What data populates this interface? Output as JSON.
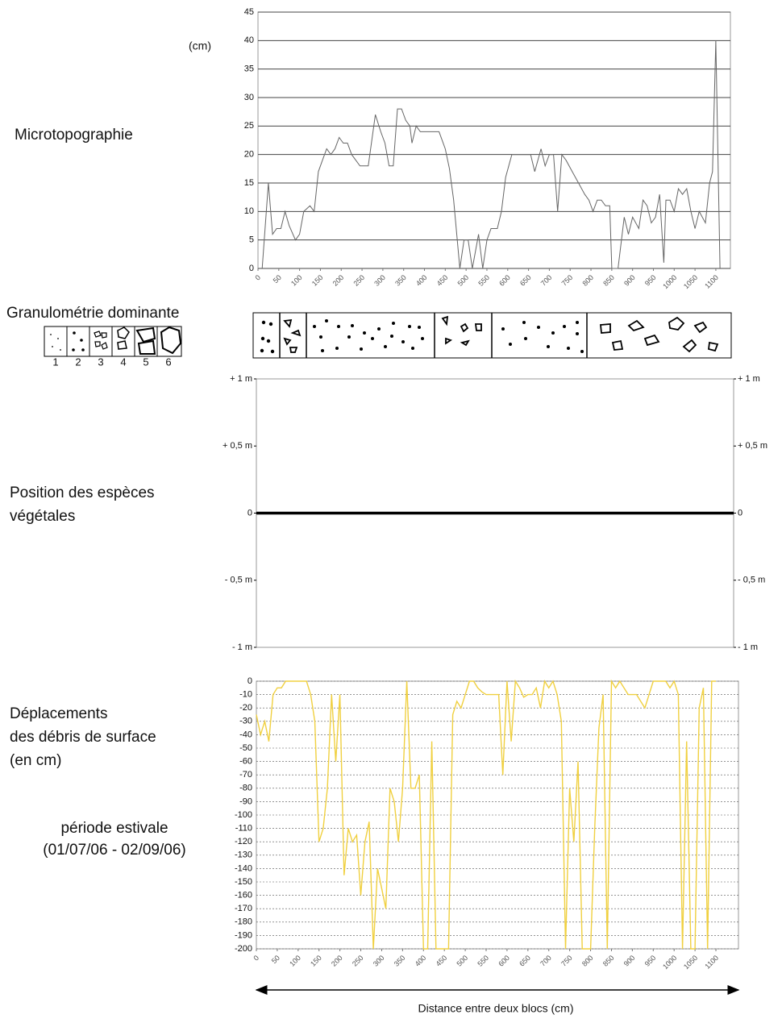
{
  "chart_data": [
    {
      "type": "line",
      "title": "Microtopographie",
      "y_unit": "(cm)",
      "x": [
        10,
        25,
        35,
        45,
        55,
        65,
        75,
        90,
        100,
        110,
        125,
        135,
        145,
        155,
        165,
        175,
        185,
        195,
        205,
        215,
        225,
        235,
        245,
        255,
        265,
        282,
        295,
        305,
        315,
        325,
        335,
        345,
        355,
        365,
        370,
        380,
        390,
        400,
        415,
        435,
        450,
        460,
        470,
        485,
        495,
        505,
        515,
        530,
        540,
        550,
        560,
        575,
        585,
        595,
        610,
        635,
        655,
        665,
        680,
        690,
        700,
        710,
        720,
        730,
        740,
        755,
        770,
        785,
        795,
        805,
        815,
        825,
        835,
        845,
        850,
        865,
        880,
        890,
        900,
        915,
        925,
        935,
        945,
        955,
        965,
        975,
        980,
        990,
        1000,
        1010,
        1020,
        1030,
        1040,
        1050,
        1060,
        1075,
        1085,
        1092,
        1100,
        1110
      ],
      "series": [
        {
          "name": "Microtopographie",
          "color": "#666666",
          "values": [
            0,
            15,
            6,
            7,
            7,
            10,
            7.5,
            5,
            6,
            10,
            11,
            10,
            17,
            19,
            21,
            20,
            21,
            23,
            22,
            22,
            20,
            19,
            18,
            18,
            18,
            27,
            24,
            22,
            18,
            18,
            28,
            28,
            26,
            25,
            22,
            25,
            24,
            24,
            24,
            24,
            21,
            17.5,
            12,
            0,
            5,
            5,
            0,
            6,
            0,
            5,
            7,
            7,
            10,
            16,
            20,
            20,
            20,
            17,
            21,
            18,
            20,
            20,
            10,
            20,
            19,
            17,
            15,
            13,
            12,
            10,
            12,
            12,
            11,
            11,
            0,
            0,
            9,
            6,
            9,
            7,
            12,
            11,
            8,
            9,
            13,
            1,
            12,
            12,
            10,
            14,
            13,
            14,
            10,
            7,
            10,
            8,
            15,
            17,
            40,
            0
          ]
        }
      ],
      "xlim": [
        0,
        1135
      ],
      "xticks": [
        0,
        50,
        100,
        150,
        200,
        250,
        300,
        350,
        400,
        450,
        500,
        550,
        600,
        650,
        700,
        750,
        800,
        850,
        900,
        950,
        1000,
        1050,
        1100
      ],
      "ylim": [
        0,
        45
      ],
      "yticks": [
        0,
        5,
        10,
        15,
        20,
        25,
        30,
        35,
        40,
        45
      ],
      "grid": true
    },
    {
      "type": "line",
      "title_lines": [
        "Position des espèces",
        "végétales"
      ],
      "series": [],
      "ylim": [
        -1,
        1
      ],
      "yticks": [
        {
          "value": 1,
          "label": "+ 1 m"
        },
        {
          "value": 0.5,
          "label": "+ 0,5 m"
        },
        {
          "value": 0,
          "label": "0"
        },
        {
          "value": -0.5,
          "label": "- 0,5 m"
        },
        {
          "value": -1,
          "label": "- 1 m"
        }
      ],
      "zero_line": true
    },
    {
      "type": "line",
      "title_lines": [
        "Déplacements",
        "des débris de surface",
        "(en cm)"
      ],
      "subtitle_lines": [
        "période estivale",
        "(01/07/06 - 02/09/06)"
      ],
      "xlabel": "Distance entre deux blocs (cm)",
      "x": [
        0,
        10,
        20,
        30,
        40,
        50,
        60,
        70,
        80,
        100,
        120,
        130,
        140,
        150,
        160,
        170,
        180,
        190,
        200,
        210,
        220,
        230,
        240,
        250,
        260,
        270,
        280,
        290,
        300,
        310,
        320,
        330,
        340,
        350,
        360,
        370,
        380,
        390,
        400,
        410,
        420,
        430,
        440,
        450,
        460,
        470,
        480,
        490,
        500,
        510,
        520,
        530,
        540,
        550,
        560,
        570,
        580,
        590,
        600,
        610,
        620,
        630,
        640,
        650,
        660,
        670,
        680,
        690,
        700,
        710,
        720,
        730,
        740,
        750,
        760,
        770,
        780,
        790,
        800,
        810,
        820,
        830,
        840,
        850,
        860,
        870,
        880,
        890,
        900,
        910,
        920,
        930,
        940,
        950,
        960,
        970,
        980,
        990,
        1000,
        1010,
        1020,
        1030,
        1040,
        1050,
        1060,
        1070,
        1080,
        1090,
        1100
      ],
      "series": [
        {
          "name": "Déplacements",
          "color": "#f0d040",
          "values": [
            -25,
            -40,
            -30,
            -45,
            -10,
            -5,
            -5,
            0,
            0,
            0,
            0,
            -10,
            -30,
            -120,
            -110,
            -80,
            -10,
            -60,
            -10,
            -145,
            -110,
            -120,
            -115,
            -160,
            -120,
            -105,
            -200,
            -140,
            -155,
            -170,
            -80,
            -90,
            -120,
            -80,
            0,
            -80,
            -80,
            -70,
            -200,
            -200,
            -45,
            -200,
            -200,
            -200,
            -200,
            -25,
            -15,
            -20,
            -10,
            0,
            0,
            -5,
            -8,
            -10,
            -10,
            -10,
            -10,
            -70,
            0,
            -45,
            0,
            -5,
            -12,
            -10,
            -10,
            -5,
            -20,
            0,
            -5,
            0,
            -10,
            -30,
            -200,
            -80,
            -120,
            -60,
            -200,
            -200,
            -200,
            -110,
            -35,
            -10,
            -200,
            0,
            -5,
            0,
            -5,
            -10,
            -10,
            -10,
            -15,
            -20,
            -10,
            0,
            0,
            0,
            0,
            -5,
            0,
            -10,
            -200,
            -45,
            -200,
            -200,
            -20,
            -5,
            -200,
            0,
            0
          ]
        }
      ],
      "xlim": [
        0,
        1154
      ],
      "xticks": [
        0,
        50,
        100,
        150,
        200,
        250,
        300,
        350,
        400,
        450,
        500,
        550,
        600,
        650,
        700,
        750,
        800,
        850,
        900,
        950,
        1000,
        1050,
        1100
      ],
      "ylim": [
        -200,
        0
      ],
      "yticks": [
        0,
        -10,
        -20,
        -30,
        -40,
        -50,
        -60,
        -70,
        -80,
        -90,
        -100,
        -110,
        -120,
        -130,
        -140,
        -150,
        -160,
        -170,
        -180,
        -190,
        -200
      ],
      "grid": true
    }
  ],
  "granulometry": {
    "title": "Granulométrie dominante",
    "legend": [
      "1",
      "2",
      "3",
      "4",
      "5",
      "6"
    ]
  }
}
